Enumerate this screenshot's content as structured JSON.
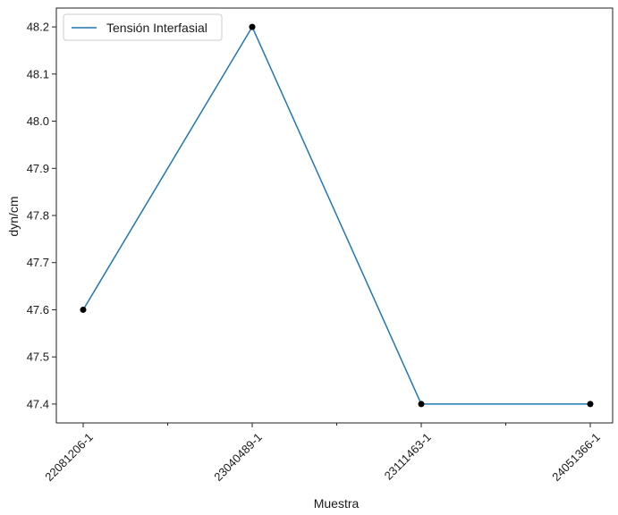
{
  "chart_data": {
    "type": "line",
    "categories": [
      "22081206-1",
      "23040489-1",
      "23111463-1",
      "24051366-1"
    ],
    "series": [
      {
        "name": "Tensión Interfasial",
        "values": [
          47.6,
          48.2,
          47.4,
          47.4
        ],
        "color": "#1f77b4",
        "marker_color": "#000000"
      }
    ],
    "xlabel": "Muestra",
    "ylabel": "dyn/cm",
    "ylim": [
      47.36,
      48.24
    ],
    "yticks": [
      47.4,
      47.5,
      47.6,
      47.7,
      47.8,
      47.9,
      48.0,
      48.1,
      48.2
    ],
    "ytick_labels": [
      "47.4",
      "47.5",
      "47.6",
      "47.7",
      "47.8",
      "47.9",
      "48.0",
      "48.1",
      "48.2"
    ],
    "x_minor_ticks": true,
    "x_tick_rotation": 45,
    "grid": false,
    "legend": {
      "position": "top-left",
      "entries": [
        "Tensión Interfasial"
      ]
    }
  }
}
